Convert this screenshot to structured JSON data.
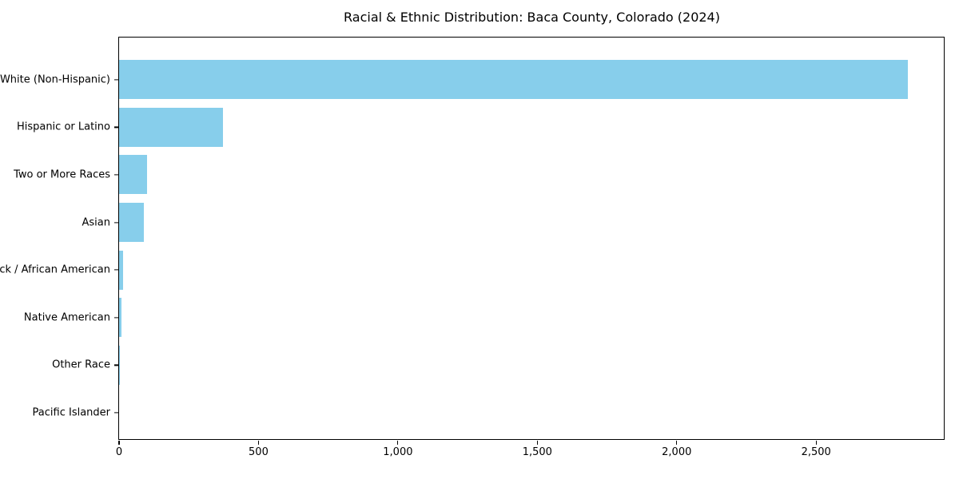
{
  "chart_data": {
    "type": "bar",
    "orientation": "horizontal",
    "title": "Racial & Ethnic Distribution: Baca County, Colorado (2024)",
    "categories": [
      "White (Non-Hispanic)",
      "Hispanic or Latino",
      "Two or More Races",
      "Asian",
      "Black / African American",
      "Native American",
      "Other Race",
      "Pacific Islander"
    ],
    "values": [
      2830,
      374,
      99,
      88,
      15,
      10,
      2,
      0
    ],
    "xlabel": "",
    "ylabel": "",
    "xlim": [
      0,
      2958
    ],
    "x_tick_values": [
      0,
      500,
      1000,
      1500,
      2000,
      2500
    ],
    "x_tick_labels": [
      "0",
      "500",
      "1,000",
      "1,500",
      "2,000",
      "2,500"
    ],
    "bar_color": "#87CEEB",
    "axis_color": "#000000",
    "background_color": "#ffffff",
    "grid": false,
    "legend": "none"
  }
}
